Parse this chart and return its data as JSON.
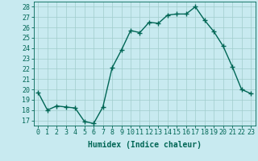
{
  "x": [
    0,
    1,
    2,
    3,
    4,
    5,
    6,
    7,
    8,
    9,
    10,
    11,
    12,
    13,
    14,
    15,
    16,
    17,
    18,
    19,
    20,
    21,
    22,
    23
  ],
  "y": [
    19.7,
    18.0,
    18.4,
    18.3,
    18.2,
    16.9,
    16.7,
    18.3,
    22.1,
    23.8,
    25.7,
    25.5,
    26.5,
    26.4,
    27.2,
    27.3,
    27.3,
    28.0,
    26.7,
    25.6,
    24.2,
    22.2,
    20.0,
    19.6
  ],
  "bg_color": "#c8eaf0",
  "line_color": "#006655",
  "marker": "+",
  "xlabel": "Humidex (Indice chaleur)",
  "ylabel_ticks": [
    17,
    18,
    19,
    20,
    21,
    22,
    23,
    24,
    25,
    26,
    27,
    28
  ],
  "xlim": [
    -0.5,
    23.5
  ],
  "ylim": [
    16.5,
    28.5
  ],
  "grid_color": "#a0cccc",
  "tick_color": "#006655",
  "label_color": "#006655",
  "font_size_label": 7,
  "font_size_tick": 6,
  "line_width": 1.0,
  "marker_size": 4
}
